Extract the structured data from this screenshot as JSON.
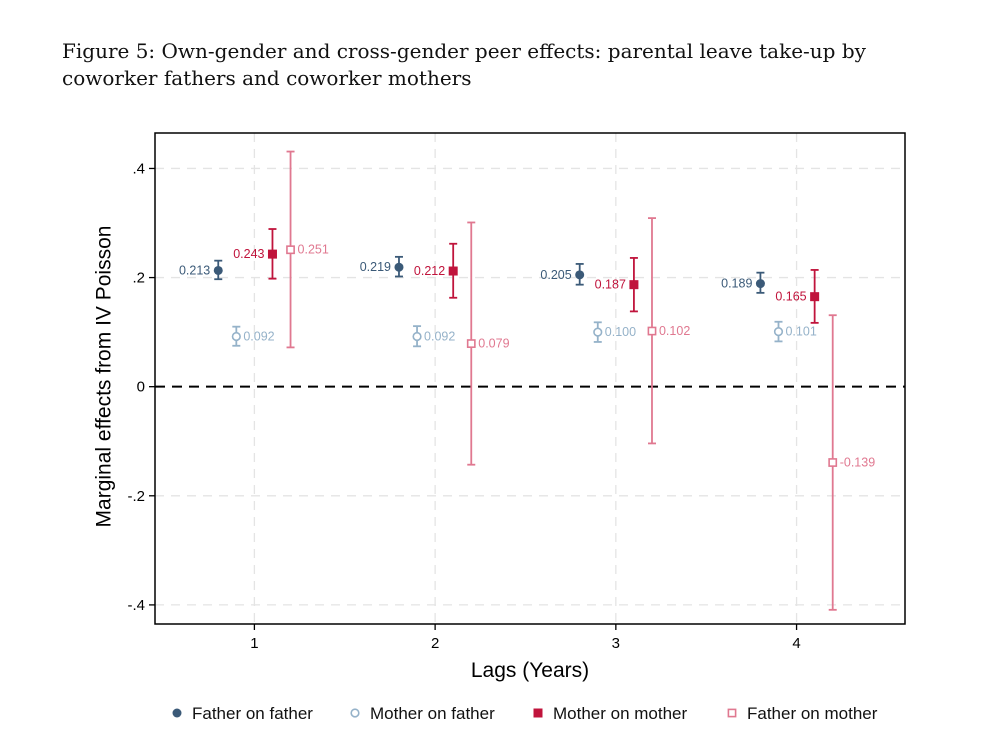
{
  "figure": {
    "caption": "Figure 5: Own-gender and cross-gender peer effects: parental leave take-up by coworker fathers and coworker mothers"
  },
  "chart_data": {
    "type": "scatter",
    "subtype": "point-with-error-bars",
    "xlabel": "Lags (Years)",
    "ylabel": "Marginal effects from IV Poisson",
    "x_ticks": [
      "1",
      "2",
      "3",
      "4"
    ],
    "y_ticks": [
      {
        "value": 0.4,
        "label": ".4"
      },
      {
        "value": 0.2,
        "label": ".2"
      },
      {
        "value": 0,
        "label": "0"
      },
      {
        "value": -0.2,
        "label": "-.2"
      },
      {
        "value": -0.4,
        "label": "-.4"
      }
    ],
    "xlim": [
      0.45,
      4.6
    ],
    "ylim": [
      -0.435,
      0.465
    ],
    "grid": true,
    "reference_line": {
      "y": 0,
      "style": "dashed"
    },
    "legend_position": "bottom",
    "series": [
      {
        "name": "Father on father",
        "marker": "filled-circle",
        "color": "#3b5a78",
        "label_side": "left",
        "offset": -0.2,
        "points": [
          {
            "x": 1,
            "y": 0.213,
            "lo": 0.197,
            "hi": 0.231,
            "label": "0.213"
          },
          {
            "x": 2,
            "y": 0.219,
            "lo": 0.202,
            "hi": 0.238,
            "label": "0.219"
          },
          {
            "x": 3,
            "y": 0.205,
            "lo": 0.187,
            "hi": 0.225,
            "label": "0.205"
          },
          {
            "x": 4,
            "y": 0.189,
            "lo": 0.172,
            "hi": 0.209,
            "label": "0.189"
          }
        ]
      },
      {
        "name": "Mother on father",
        "marker": "hollow-circle",
        "color": "#95b2c9",
        "label_side": "right",
        "offset": -0.1,
        "points": [
          {
            "x": 1,
            "y": 0.092,
            "lo": 0.075,
            "hi": 0.11,
            "label": "0.092"
          },
          {
            "x": 2,
            "y": 0.092,
            "lo": 0.074,
            "hi": 0.111,
            "label": "0.092"
          },
          {
            "x": 3,
            "y": 0.1,
            "lo": 0.082,
            "hi": 0.118,
            "label": "0.100"
          },
          {
            "x": 4,
            "y": 0.101,
            "lo": 0.083,
            "hi": 0.119,
            "label": "0.101"
          }
        ]
      },
      {
        "name": "Mother on mother",
        "marker": "filled-square",
        "color": "#c0143c",
        "label_side": "left",
        "offset": 0.1,
        "points": [
          {
            "x": 1,
            "y": 0.243,
            "lo": 0.198,
            "hi": 0.289,
            "label": "0.243"
          },
          {
            "x": 2,
            "y": 0.212,
            "lo": 0.163,
            "hi": 0.262,
            "label": "0.212"
          },
          {
            "x": 3,
            "y": 0.187,
            "lo": 0.138,
            "hi": 0.236,
            "label": "0.187"
          },
          {
            "x": 4,
            "y": 0.165,
            "lo": 0.117,
            "hi": 0.214,
            "label": "0.165"
          }
        ]
      },
      {
        "name": "Father on mother",
        "marker": "hollow-square",
        "color": "#e07890",
        "label_side": "right",
        "offset": 0.2,
        "points": [
          {
            "x": 1,
            "y": 0.251,
            "lo": 0.072,
            "hi": 0.431,
            "label": "0.251"
          },
          {
            "x": 2,
            "y": 0.079,
            "lo": -0.143,
            "hi": 0.301,
            "label": "0.079"
          },
          {
            "x": 3,
            "y": 0.102,
            "lo": -0.104,
            "hi": 0.309,
            "label": "0.102"
          },
          {
            "x": 4,
            "y": -0.139,
            "lo": -0.409,
            "hi": 0.131,
            "label": "-0.139"
          }
        ]
      }
    ]
  }
}
